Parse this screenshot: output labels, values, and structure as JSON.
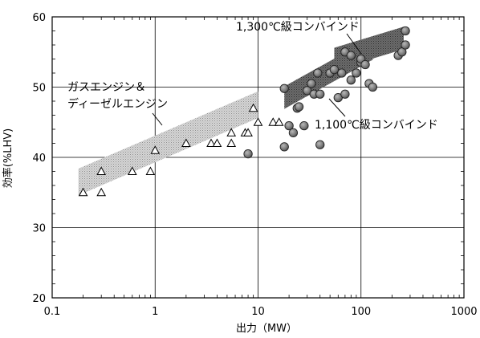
{
  "chart_data": {
    "type": "scatter",
    "title": "",
    "xlabel": "出力（MW）",
    "ylabel": "効率(%LHV)",
    "xscale": "log",
    "xlim": [
      0.1,
      1000
    ],
    "ylim": [
      20,
      60
    ],
    "grid": true,
    "x_tick_labels": [
      "0.1",
      "1",
      "10",
      "100",
      "1000"
    ],
    "y_tick_labels": [
      "20",
      "30",
      "40",
      "50",
      "60"
    ],
    "series": [
      {
        "name": "ガスエンジン＆ディーゼルエンジン",
        "marker": "triangle-open",
        "points": [
          [
            0.2,
            35
          ],
          [
            0.3,
            35
          ],
          [
            0.3,
            38
          ],
          [
            0.6,
            38
          ],
          [
            0.9,
            38
          ],
          [
            1.0,
            41
          ],
          [
            2.0,
            42
          ],
          [
            3.5,
            42
          ],
          [
            4.0,
            42
          ],
          [
            5.5,
            42
          ],
          [
            5.5,
            43.5
          ],
          [
            7.5,
            43.5
          ],
          [
            8.0,
            43.5
          ],
          [
            9.0,
            47
          ],
          [
            10,
            45
          ],
          [
            14,
            45
          ],
          [
            16,
            45
          ]
        ]
      },
      {
        "name": "1,100℃級コンバインド",
        "marker": "circle-filled",
        "points": [
          [
            8,
            40.5
          ],
          [
            18,
            41.5
          ],
          [
            18,
            49.8
          ],
          [
            20,
            44.5
          ],
          [
            22,
            43.5
          ],
          [
            24,
            47
          ],
          [
            25,
            47.2
          ],
          [
            28,
            44.5
          ],
          [
            30,
            49.5
          ],
          [
            33,
            50.5
          ],
          [
            35,
            49
          ],
          [
            38,
            52
          ],
          [
            40,
            49
          ],
          [
            40,
            41.8
          ],
          [
            50,
            52
          ],
          [
            60,
            48.5
          ],
          [
            65,
            52
          ],
          [
            70,
            49
          ],
          [
            80,
            51
          ],
          [
            90,
            52
          ],
          [
            100,
            53.5
          ],
          [
            120,
            50.5
          ],
          [
            130,
            50
          ]
        ]
      },
      {
        "name": "1,300℃級コンバインド",
        "marker": "circle-filled",
        "points": [
          [
            55,
            52.5
          ],
          [
            70,
            55
          ],
          [
            80,
            54.5
          ],
          [
            100,
            54
          ],
          [
            110,
            53.2
          ],
          [
            230,
            54.5
          ],
          [
            250,
            55
          ],
          [
            270,
            56
          ],
          [
            270,
            58
          ]
        ]
      }
    ],
    "bands": [
      {
        "name": "ガスエンジン＆ディーゼルエンジン",
        "from": [
          0.18,
          36.5
        ],
        "to": [
          10,
          47.5
        ],
        "width": 3.8,
        "color": "#c2c2c2"
      },
      {
        "name": "1,100℃級コンバインド",
        "from": [
          18,
          48.5
        ],
        "to": [
          130,
          55.5
        ],
        "width": 3.2,
        "color": "#6a6a6a"
      },
      {
        "name": "1,300℃級コンバインド",
        "from": [
          55,
          54.0
        ],
        "to": [
          260,
          57.0
        ],
        "width": 3.2,
        "color": "#6a6a6a"
      }
    ],
    "annotations": [
      {
        "text": "1,300℃級コンバインド"
      },
      {
        "text": "ガスエンジン＆"
      },
      {
        "text": "ディーゼルエンジン"
      },
      {
        "text": "1,100℃級コンバインド"
      }
    ]
  }
}
